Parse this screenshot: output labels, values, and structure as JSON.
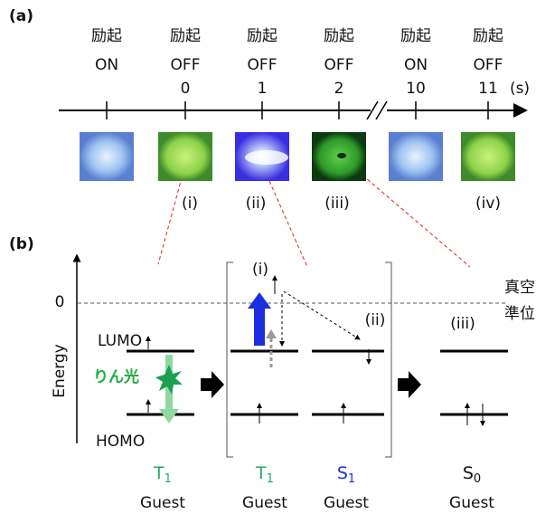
{
  "panel_a": {
    "label": "(a)",
    "unit": "(s)",
    "columns": [
      {
        "line1": "励起",
        "line2": "ON"
      },
      {
        "line1": "励起",
        "line2": "OFF",
        "time": 0
      },
      {
        "line1": "励起",
        "line2": "OFF",
        "time": 1
      },
      {
        "line1": "励起",
        "line2": "OFF",
        "time": 2
      },
      {
        "line1": "励起",
        "line2": "ON",
        "time": 10
      },
      {
        "line1": "励起",
        "line2": "OFF",
        "time": 11
      }
    ],
    "image_labels": [
      "(i)",
      "(ii)",
      "(iii)",
      "(iv)"
    ]
  },
  "panel_b": {
    "label": "(b)",
    "axis_label": "Energy",
    "zero": "0",
    "vacuum": [
      "真空",
      "準位"
    ],
    "lumo": "LUMO",
    "homo": "HOMO",
    "phosphorescence": "りん光",
    "state_labels": [
      "(i)",
      "(ii)",
      "(iii)"
    ],
    "states": [
      {
        "symbol": "T",
        "sub": "1",
        "molecule": "Guest"
      },
      {
        "symbol": "T",
        "sub": "1",
        "molecule": "Guest"
      },
      {
        "symbol": "S",
        "sub": "1",
        "molecule": "Guest"
      },
      {
        "symbol": "S",
        "sub": "0",
        "molecule": "Guest"
      }
    ]
  }
}
